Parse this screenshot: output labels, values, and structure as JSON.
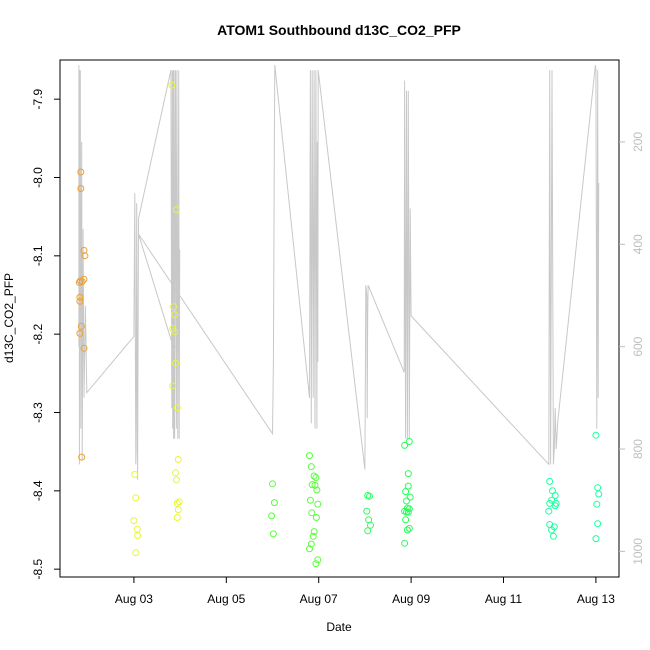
{
  "chart_data": {
    "type": "scatter",
    "title": "ATOM1 Southbound d13C_CO2_PFP",
    "xlabel": "Date",
    "ylabel": "d13C_CO2_PFP",
    "x_unit": "days in August",
    "xlim": [
      1.4,
      13.5
    ],
    "ylim": [
      -8.51,
      -7.85
    ],
    "x_ticks": [
      {
        "value": 3,
        "label": "Aug 03"
      },
      {
        "value": 5,
        "label": "Aug 05"
      },
      {
        "value": 7,
        "label": "Aug 07"
      },
      {
        "value": 9,
        "label": "Aug 09"
      },
      {
        "value": 11,
        "label": "Aug 11"
      },
      {
        "value": 13,
        "label": "Aug 13"
      }
    ],
    "y_ticks": [
      {
        "value": -8.5,
        "label": "-8.5"
      },
      {
        "value": -8.4,
        "label": "-8.4"
      },
      {
        "value": -8.3,
        "label": "-8.3"
      },
      {
        "value": -8.2,
        "label": "-8.2"
      },
      {
        "value": -8.1,
        "label": "-8.1"
      },
      {
        "value": -8.0,
        "label": "-8.0"
      },
      {
        "value": -7.9,
        "label": "-7.9"
      }
    ],
    "right_axis": {
      "label": "",
      "lim": [
        40,
        1050
      ],
      "reversed": true,
      "color": "#bebebe",
      "ticks": [
        {
          "value": 200,
          "label": "200"
        },
        {
          "value": 400,
          "label": "400"
        },
        {
          "value": 600,
          "label": "600"
        },
        {
          "value": 800,
          "label": "800"
        },
        {
          "value": 1000,
          "label": "1000"
        }
      ]
    },
    "grid": false,
    "legend": "none",
    "point_series": [
      {
        "color": "#f0a030",
        "points": [
          [
            1.85,
            -7.993
          ],
          [
            1.85,
            -8.014
          ],
          [
            1.82,
            -8.134
          ],
          [
            1.84,
            -8.132
          ],
          [
            1.83,
            -8.153
          ],
          [
            1.83,
            -8.158
          ],
          [
            1.86,
            -8.19
          ],
          [
            1.83,
            -8.199
          ],
          [
            1.92,
            -8.093
          ],
          [
            1.94,
            -8.1
          ],
          [
            1.92,
            -8.13
          ],
          [
            1.88,
            -8.133
          ],
          [
            1.92,
            -8.218
          ],
          [
            1.87,
            -8.357
          ]
        ]
      },
      {
        "color": "#e6f53c",
        "points": [
          [
            3.02,
            -8.379
          ],
          [
            3.04,
            -8.409
          ],
          [
            3.0,
            -8.438
          ],
          [
            3.07,
            -8.449
          ],
          [
            3.08,
            -8.457
          ],
          [
            3.04,
            -8.479
          ],
          [
            3.82,
            -7.882
          ],
          [
            3.92,
            -8.041
          ],
          [
            3.86,
            -8.165
          ],
          [
            3.88,
            -8.175
          ],
          [
            3.84,
            -8.193
          ],
          [
            3.88,
            -8.197
          ],
          [
            3.9,
            -8.237
          ],
          [
            3.84,
            -8.266
          ],
          [
            3.94,
            -8.294
          ],
          [
            3.96,
            -8.36
          ],
          [
            3.9,
            -8.377
          ],
          [
            3.92,
            -8.386
          ],
          [
            3.98,
            -8.414
          ],
          [
            3.94,
            -8.416
          ],
          [
            3.96,
            -8.424
          ],
          [
            3.94,
            -8.434
          ]
        ]
      },
      {
        "color": "#59ff3c",
        "points": [
          [
            6.0,
            -8.391
          ],
          [
            6.04,
            -8.415
          ],
          [
            5.98,
            -8.432
          ],
          [
            6.02,
            -8.455
          ],
          [
            6.8,
            -8.355
          ],
          [
            6.84,
            -8.369
          ],
          [
            6.9,
            -8.381
          ],
          [
            6.94,
            -8.383
          ],
          [
            6.86,
            -8.392
          ],
          [
            6.92,
            -8.393
          ],
          [
            6.96,
            -8.399
          ],
          [
            6.82,
            -8.412
          ],
          [
            6.98,
            -8.417
          ],
          [
            6.85,
            -8.428
          ],
          [
            6.95,
            -8.434
          ],
          [
            6.9,
            -8.452
          ],
          [
            6.88,
            -8.458
          ],
          [
            6.84,
            -8.468
          ],
          [
            6.8,
            -8.474
          ],
          [
            6.98,
            -8.488
          ],
          [
            6.94,
            -8.493
          ]
        ]
      },
      {
        "color": "#28ff5a",
        "points": [
          [
            8.06,
            -8.406
          ],
          [
            8.1,
            -8.407
          ],
          [
            8.04,
            -8.426
          ],
          [
            8.08,
            -8.437
          ],
          [
            8.12,
            -8.444
          ],
          [
            8.06,
            -8.451
          ],
          [
            8.86,
            -8.342
          ],
          [
            8.96,
            -8.337
          ],
          [
            8.94,
            -8.378
          ],
          [
            8.94,
            -8.394
          ],
          [
            8.88,
            -8.401
          ],
          [
            8.98,
            -8.408
          ],
          [
            8.9,
            -8.413
          ],
          [
            8.92,
            -8.422
          ],
          [
            8.96,
            -8.423
          ],
          [
            8.86,
            -8.426
          ],
          [
            8.9,
            -8.427
          ],
          [
            8.94,
            -8.427
          ],
          [
            8.88,
            -8.437
          ],
          [
            8.96,
            -8.448
          ],
          [
            8.92,
            -8.45
          ],
          [
            8.86,
            -8.467
          ]
        ]
      },
      {
        "color": "#1effa0",
        "points": [
          [
            12.0,
            -8.388
          ],
          [
            12.06,
            -8.4
          ],
          [
            12.12,
            -8.406
          ],
          [
            12.04,
            -8.412
          ],
          [
            12.0,
            -8.416
          ],
          [
            12.14,
            -8.416
          ],
          [
            11.98,
            -8.426
          ],
          [
            12.1,
            -8.446
          ],
          [
            12.04,
            -8.45
          ],
          [
            12.08,
            -8.458
          ],
          [
            12.0,
            -8.443
          ],
          [
            12.12,
            -8.419
          ],
          [
            13.0,
            -8.329
          ],
          [
            13.04,
            -8.396
          ],
          [
            13.06,
            -8.404
          ],
          [
            13.02,
            -8.417
          ],
          [
            13.04,
            -8.442
          ],
          [
            13.0,
            -8.461
          ]
        ]
      }
    ],
    "line_series": {
      "color": "#c8c8c8",
      "axis": "right",
      "points": [
        [
          1.81,
          50
        ],
        [
          1.81,
          600
        ],
        [
          1.82,
          70
        ],
        [
          1.82,
          830
        ],
        [
          1.83,
          60
        ],
        [
          1.83,
          450
        ],
        [
          1.84,
          60
        ],
        [
          1.85,
          760
        ],
        [
          1.87,
          200
        ],
        [
          1.88,
          820
        ],
        [
          1.9,
          370
        ],
        [
          1.92,
          700
        ],
        [
          1.95,
          520
        ],
        [
          1.98,
          690
        ],
        [
          3.0,
          580
        ],
        [
          3.02,
          300
        ],
        [
          3.04,
          830
        ],
        [
          3.05,
          800
        ],
        [
          3.06,
          320
        ],
        [
          3.08,
          860
        ],
        [
          3.1,
          350
        ],
        [
          3.8,
          60
        ],
        [
          3.82,
          720
        ],
        [
          3.83,
          60
        ],
        [
          3.84,
          760
        ],
        [
          3.85,
          60
        ],
        [
          3.86,
          780
        ],
        [
          3.87,
          60
        ],
        [
          3.88,
          780
        ],
        [
          3.9,
          60
        ],
        [
          3.92,
          760
        ],
        [
          3.93,
          60
        ],
        [
          3.95,
          780
        ],
        [
          3.97,
          60
        ],
        [
          3.98,
          780
        ],
        [
          3.99,
          410
        ],
        [
          3.98,
          600
        ],
        [
          3.85,
          600
        ],
        [
          3.1,
          380
        ],
        [
          6.0,
          770
        ],
        [
          6.02,
          630
        ],
        [
          6.04,
          180
        ],
        [
          6.05,
          50
        ],
        [
          6.8,
          700
        ],
        [
          6.82,
          60
        ],
        [
          6.84,
          750
        ],
        [
          6.86,
          60
        ],
        [
          6.88,
          700
        ],
        [
          6.9,
          60
        ],
        [
          6.92,
          760
        ],
        [
          6.94,
          60
        ],
        [
          6.96,
          760
        ],
        [
          6.97,
          200
        ],
        [
          6.98,
          630
        ],
        [
          6.99,
          60
        ],
        [
          8.0,
          840
        ],
        [
          8.02,
          480
        ],
        [
          8.04,
          500
        ],
        [
          8.05,
          740
        ],
        [
          8.06,
          540
        ],
        [
          8.07,
          480
        ],
        [
          8.85,
          650
        ],
        [
          8.86,
          80
        ],
        [
          8.88,
          780
        ],
        [
          8.9,
          100
        ],
        [
          8.92,
          780
        ],
        [
          8.94,
          100
        ],
        [
          8.96,
          780
        ],
        [
          8.98,
          330
        ],
        [
          9.0,
          540
        ],
        [
          11.98,
          830
        ],
        [
          12.0,
          60
        ],
        [
          12.02,
          830
        ],
        [
          12.05,
          60
        ],
        [
          12.08,
          830
        ],
        [
          12.1,
          800
        ],
        [
          12.12,
          720
        ],
        [
          12.14,
          800
        ],
        [
          12.16,
          770
        ],
        [
          12.17,
          750
        ],
        [
          12.99,
          50
        ],
        [
          13.0,
          60
        ],
        [
          13.02,
          760
        ],
        [
          13.04,
          60
        ],
        [
          13.05,
          700
        ],
        [
          13.06,
          280
        ]
      ]
    }
  }
}
